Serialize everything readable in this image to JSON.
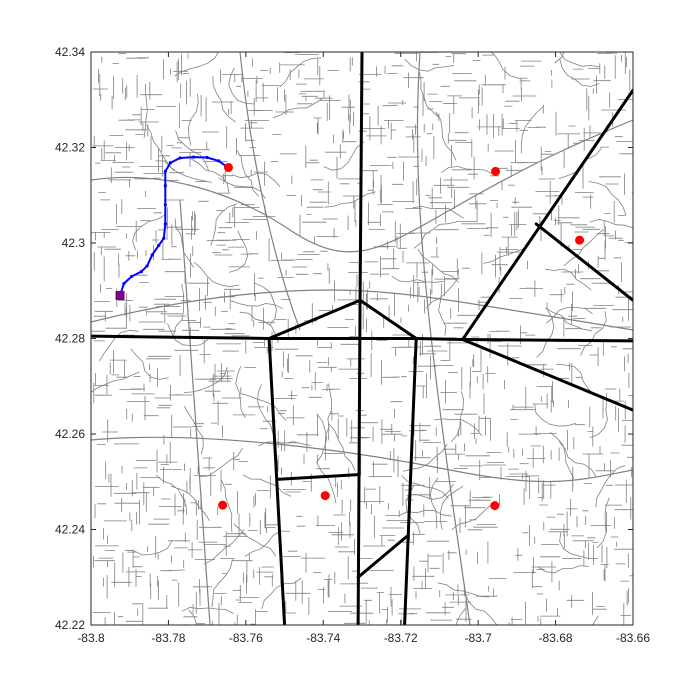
{
  "chart_data": {
    "type": "scatter",
    "title": "",
    "xlabel": "",
    "ylabel": "",
    "xlim": [
      -83.8,
      -83.66
    ],
    "ylim": [
      42.22,
      42.34
    ],
    "grid": false,
    "x_ticks": [
      -83.8,
      -83.78,
      -83.76,
      -83.74,
      -83.72,
      -83.7,
      -83.68,
      -83.66
    ],
    "x_tick_labels": [
      "-83.8",
      "-83.78",
      "-83.76",
      "-83.74",
      "-83.72",
      "-83.7",
      "-83.68",
      "-83.66"
    ],
    "y_ticks": [
      42.22,
      42.24,
      42.26,
      42.28,
      42.3,
      42.32,
      42.34
    ],
    "y_tick_labels": [
      "42.22",
      "42.24",
      "42.26",
      "42.28",
      "42.3",
      "42.32",
      "42.34"
    ],
    "colors": {
      "roads": "#808080",
      "boundaries": "#000000",
      "route": "#0000ff",
      "centers": "#ff0000",
      "start": "#800080"
    },
    "centers": [
      {
        "x": -83.7645,
        "y": 42.3158
      },
      {
        "x": -83.6955,
        "y": 42.315
      },
      {
        "x": -83.6738,
        "y": 42.3006
      },
      {
        "x": -83.766,
        "y": 42.2451
      },
      {
        "x": -83.7395,
        "y": 42.2471
      },
      {
        "x": -83.6957,
        "y": 42.245
      }
    ],
    "start_point": {
      "x": -83.7925,
      "y": 42.289
    },
    "route": [
      [
        -83.7925,
        42.289
      ],
      [
        -83.7915,
        42.2915
      ],
      [
        -83.7895,
        42.293
      ],
      [
        -83.787,
        42.294
      ],
      [
        -83.7855,
        42.2952
      ],
      [
        -83.7842,
        42.2975
      ],
      [
        -83.7825,
        42.2995
      ],
      [
        -83.7812,
        42.301
      ],
      [
        -83.7808,
        42.304
      ],
      [
        -83.7808,
        42.308
      ],
      [
        -83.7808,
        42.312
      ],
      [
        -83.7808,
        42.315
      ],
      [
        -83.7795,
        42.3168
      ],
      [
        -83.777,
        42.3178
      ],
      [
        -83.7735,
        42.318
      ],
      [
        -83.77,
        42.3179
      ],
      [
        -83.767,
        42.3172
      ],
      [
        -83.765,
        42.316
      ]
    ],
    "boundaries": [
      [
        [
          -83.73,
          42.34
        ],
        [
          -83.7305,
          42.288
        ]
      ],
      [
        [
          -83.7305,
          42.288
        ],
        [
          -83.754,
          42.28
        ]
      ],
      [
        [
          -83.7305,
          42.288
        ],
        [
          -83.716,
          42.28
        ]
      ],
      [
        [
          -83.8,
          42.2805
        ],
        [
          -83.754,
          42.28
        ]
      ],
      [
        [
          -83.754,
          42.28
        ],
        [
          -83.716,
          42.28
        ]
      ],
      [
        [
          -83.716,
          42.28
        ],
        [
          -83.704,
          42.2798
        ]
      ],
      [
        [
          -83.704,
          42.2798
        ],
        [
          -83.66,
          42.2795
        ]
      ],
      [
        [
          -83.754,
          42.28
        ],
        [
          -83.75,
          42.22
        ]
      ],
      [
        [
          -83.716,
          42.28
        ],
        [
          -83.719,
          42.22
        ]
      ],
      [
        [
          -83.7305,
          42.288
        ],
        [
          -83.731,
          42.22
        ]
      ],
      [
        [
          -83.752,
          42.2505
        ],
        [
          -83.731,
          42.2515
        ]
      ],
      [
        [
          -83.731,
          42.23
        ],
        [
          -83.7185,
          42.2385
        ]
      ],
      [
        [
          -83.704,
          42.2798
        ],
        [
          -83.66,
          42.332
        ]
      ],
      [
        [
          -83.685,
          42.304
        ],
        [
          -83.66,
          42.288
        ]
      ],
      [
        [
          -83.704,
          42.2798
        ],
        [
          -83.66,
          42.265
        ]
      ]
    ]
  }
}
